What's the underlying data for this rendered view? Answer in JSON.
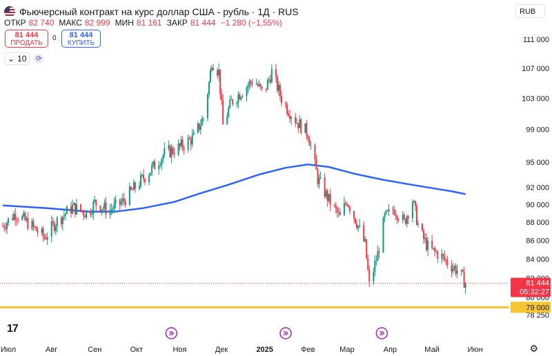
{
  "header": {
    "title": "Фьючерсный контракт на курс доллар США - рубль · 1Д · RUS",
    "currency": "RUB"
  },
  "ohlc": {
    "open_label": "ОТКР",
    "open": "82 740",
    "high_label": "МАКС",
    "high": "82 999",
    "low_label": "МИН",
    "low": "81 161",
    "close_label": "ЗАКР",
    "close": "81 444",
    "change": "−1 280 (−1,55%)"
  },
  "trade": {
    "sell_price": "81 444",
    "sell_label": "ПРОДАТЬ",
    "spread": "0",
    "buy_price": "81 444",
    "buy_label": "КУПИТЬ"
  },
  "indicator": {
    "value": "10"
  },
  "colors": {
    "up": "#089981",
    "down": "#f23645",
    "ma": "#2962ff",
    "level": "#f7c531",
    "accent": "#9c27b0"
  },
  "chart_data": {
    "type": "candlestick",
    "x_ticks": [
      "Июл",
      "Авг",
      "Сен",
      "Окт",
      "Ноя",
      "Дек",
      "2025",
      "Фев",
      "Мар",
      "Апр",
      "Май",
      "Июн"
    ],
    "y_ticks": [
      "111 000",
      "107 000",
      "103 000",
      "99 000",
      "95 000",
      "92 000",
      "90 000",
      "88 000",
      "86 000",
      "84 000",
      "82 000",
      "80 000",
      "78 250"
    ],
    "y_tick_values": [
      111000,
      107000,
      103000,
      99000,
      95000,
      92000,
      90000,
      88000,
      86000,
      84000,
      82000,
      80000,
      78250
    ],
    "last_price_label": "81 444",
    "countdown": "05:32:27",
    "horizontal_level_label": "79 000",
    "horizontal_level": 79000,
    "last_price": 81444,
    "close_path": [
      [
        "2024-07-01",
        87600
      ],
      [
        "2024-07-10",
        89000
      ],
      [
        "2024-07-20",
        87800
      ],
      [
        "2024-07-31",
        86300
      ],
      [
        "2024-08-08",
        88000
      ],
      [
        "2024-08-20",
        89700
      ],
      [
        "2024-08-31",
        89000
      ],
      [
        "2024-09-05",
        90200
      ],
      [
        "2024-09-15",
        89300
      ],
      [
        "2024-09-25",
        90300
      ],
      [
        "2024-10-05",
        92200
      ],
      [
        "2024-10-15",
        94000
      ],
      [
        "2024-10-25",
        96000
      ],
      [
        "2024-11-05",
        96800
      ],
      [
        "2024-11-15",
        98000
      ],
      [
        "2024-11-22",
        100500
      ],
      [
        "2024-11-26",
        105000
      ],
      [
        "2024-11-28",
        108000
      ],
      [
        "2024-12-03",
        106500
      ],
      [
        "2024-12-06",
        99500
      ],
      [
        "2024-12-12",
        102500
      ],
      [
        "2024-12-20",
        104000
      ],
      [
        "2024-12-28",
        105500
      ],
      [
        "2025-01-04",
        103500
      ],
      [
        "2025-01-10",
        106500
      ],
      [
        "2025-01-18",
        102500
      ],
      [
        "2025-01-28",
        100000
      ],
      [
        "2025-02-05",
        98500
      ],
      [
        "2025-02-12",
        93000
      ],
      [
        "2025-02-20",
        90500
      ],
      [
        "2025-02-28",
        88500
      ],
      [
        "2025-03-05",
        90500
      ],
      [
        "2025-03-12",
        88000
      ],
      [
        "2025-03-18",
        85500
      ],
      [
        "2025-03-21",
        81200
      ],
      [
        "2025-03-27",
        84500
      ],
      [
        "2025-04-01",
        88500
      ],
      [
        "2025-04-08",
        89500
      ],
      [
        "2025-04-15",
        88000
      ],
      [
        "2025-04-21",
        90500
      ],
      [
        "2025-04-26",
        87000
      ],
      [
        "2025-05-03",
        85000
      ],
      [
        "2025-05-10",
        84500
      ],
      [
        "2025-05-17",
        83500
      ],
      [
        "2025-05-24",
        82700
      ],
      [
        "2025-05-29",
        81444
      ]
    ],
    "moving_average": [
      [
        "2024-07-01",
        89900
      ],
      [
        "2024-08-01",
        89600
      ],
      [
        "2024-09-01",
        89200
      ],
      [
        "2024-09-20",
        89200
      ],
      [
        "2024-10-10",
        89600
      ],
      [
        "2024-11-01",
        90300
      ],
      [
        "2024-11-20",
        91300
      ],
      [
        "2024-12-10",
        92300
      ],
      [
        "2025-01-01",
        93500
      ],
      [
        "2025-01-20",
        94300
      ],
      [
        "2025-02-05",
        94700
      ],
      [
        "2025-02-20",
        94400
      ],
      [
        "2025-03-10",
        93600
      ],
      [
        "2025-03-30",
        92900
      ],
      [
        "2025-04-20",
        92300
      ],
      [
        "2025-05-20",
        91500
      ],
      [
        "2025-05-29",
        91200
      ]
    ],
    "grid": false,
    "y_scale": "log"
  }
}
